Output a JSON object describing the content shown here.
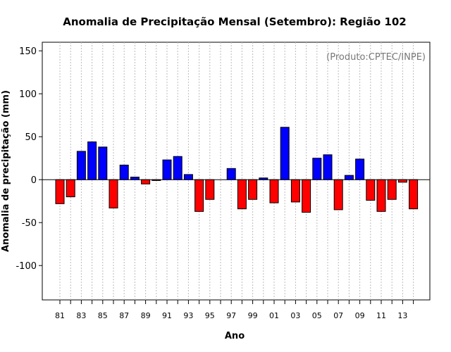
{
  "chart_data": {
    "type": "bar",
    "title": "Anomalia de Precipitação Mensal (Setembro): Região 102",
    "xlabel": "Ano",
    "ylabel": "Anomalia de precipitação (mm)",
    "annotation": "(Produto:CPTEC/INPE)",
    "ylim": [
      -140,
      160
    ],
    "yticks": [
      -100,
      -50,
      0,
      50,
      100,
      150
    ],
    "categories": [
      "81",
      "82",
      "83",
      "84",
      "85",
      "86",
      "87",
      "88",
      "89",
      "90",
      "91",
      "92",
      "93",
      "94",
      "95",
      "96",
      "97",
      "98",
      "99",
      "00",
      "01",
      "02",
      "03",
      "04",
      "05",
      "06",
      "07",
      "08",
      "09",
      "10",
      "11",
      "12",
      "13",
      "14"
    ],
    "xtick_labels": [
      "81",
      "83",
      "85",
      "87",
      "89",
      "91",
      "93",
      "95",
      "97",
      "99",
      "01",
      "03",
      "05",
      "07",
      "09",
      "11",
      "13"
    ],
    "values": [
      -28,
      -20,
      33,
      44,
      38,
      -33,
      17,
      3,
      -5,
      -1,
      23,
      27,
      6,
      -37,
      -23,
      0,
      13,
      -34,
      -23,
      2,
      -27,
      61,
      -26,
      -38,
      25,
      29,
      -35,
      5,
      24,
      -24,
      -37,
      -23,
      -3,
      -34
    ],
    "colors": {
      "positive": "#0000ff",
      "negative": "#ff0000",
      "grid": "#bbbbbb"
    },
    "grid": true
  }
}
